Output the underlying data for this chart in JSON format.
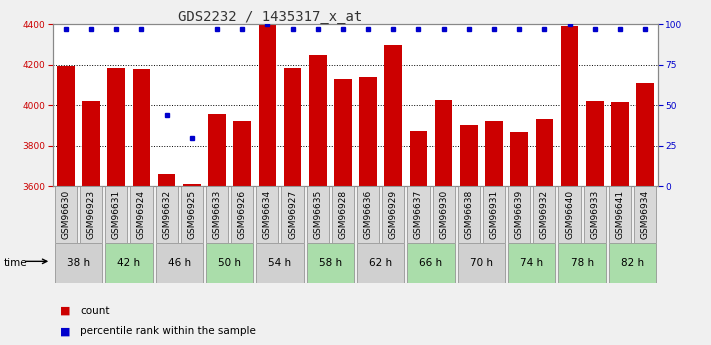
{
  "title": "GDS2232 / 1435317_x_at",
  "samples": [
    "GSM96630",
    "GSM96923",
    "GSM96631",
    "GSM96924",
    "GSM96632",
    "GSM96925",
    "GSM96633",
    "GSM96926",
    "GSM96634",
    "GSM96927",
    "GSM96635",
    "GSM96928",
    "GSM96636",
    "GSM96929",
    "GSM96637",
    "GSM96930",
    "GSM96638",
    "GSM96931",
    "GSM96639",
    "GSM96932",
    "GSM96640",
    "GSM96933",
    "GSM96641",
    "GSM96934"
  ],
  "counts": [
    4195,
    4020,
    4185,
    4180,
    3660,
    3610,
    3955,
    3920,
    4395,
    4185,
    4250,
    4130,
    4140,
    4295,
    3875,
    4025,
    3900,
    3920,
    3870,
    3930,
    4390,
    4020,
    4015,
    4110
  ],
  "percentile_ranks": [
    97,
    97,
    97,
    97,
    44,
    30,
    97,
    97,
    100,
    97,
    97,
    97,
    97,
    97,
    97,
    97,
    97,
    97,
    97,
    97,
    100,
    97,
    97,
    97
  ],
  "time_groups": [
    {
      "label": "38 h",
      "indices": [
        0,
        1
      ],
      "color": "#d0d0d0"
    },
    {
      "label": "42 h",
      "indices": [
        2,
        3
      ],
      "color": "#aaddaa"
    },
    {
      "label": "46 h",
      "indices": [
        4,
        5
      ],
      "color": "#d0d0d0"
    },
    {
      "label": "50 h",
      "indices": [
        6,
        7
      ],
      "color": "#aaddaa"
    },
    {
      "label": "54 h",
      "indices": [
        8,
        9
      ],
      "color": "#d0d0d0"
    },
    {
      "label": "58 h",
      "indices": [
        10,
        11
      ],
      "color": "#aaddaa"
    },
    {
      "label": "62 h",
      "indices": [
        12,
        13
      ],
      "color": "#d0d0d0"
    },
    {
      "label": "66 h",
      "indices": [
        14,
        15
      ],
      "color": "#aaddaa"
    },
    {
      "label": "70 h",
      "indices": [
        16,
        17
      ],
      "color": "#d0d0d0"
    },
    {
      "label": "74 h",
      "indices": [
        18,
        19
      ],
      "color": "#aaddaa"
    },
    {
      "label": "78 h",
      "indices": [
        20,
        21
      ],
      "color": "#aaddaa"
    },
    {
      "label": "82 h",
      "indices": [
        22,
        23
      ],
      "color": "#aaddaa"
    }
  ],
  "bar_color": "#cc0000",
  "dot_color": "#0000cc",
  "ylim_left": [
    3600,
    4400
  ],
  "ylim_right": [
    0,
    100
  ],
  "yticks_left": [
    3600,
    3800,
    4000,
    4200,
    4400
  ],
  "yticks_right": [
    0,
    25,
    50,
    75,
    100
  ],
  "grid_values": [
    3800,
    4000,
    4200
  ],
  "background_color": "#f0f0f0",
  "plot_bg_color": "#ffffff",
  "bar_width": 0.7,
  "title_fontsize": 10,
  "tick_fontsize": 6.5,
  "label_fontsize": 7.5,
  "sample_box_color": "#d8d8d8",
  "sample_box_border": "#888888"
}
